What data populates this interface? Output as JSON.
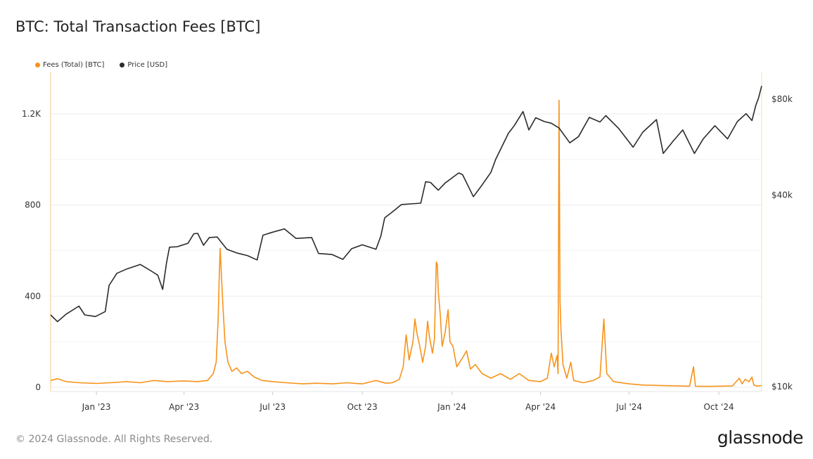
{
  "title": "BTC: Total Transaction Fees [BTC]",
  "footer": {
    "copyright": "© 2024 Glassnode. All Rights Reserved.",
    "brand": "glassnode"
  },
  "colors": {
    "fees": "#f7931a",
    "price": "#2b2b2b",
    "grid": "#ececec"
  },
  "chart_data": {
    "type": "line",
    "title": "BTC: Total Transaction Fees [BTC]",
    "legend": "top-left",
    "grid": true,
    "x_range": [
      "2022-11-15",
      "2024-11-14"
    ],
    "x_ticks": [
      {
        "date": "2023-01-01",
        "label": "Jan '23"
      },
      {
        "date": "2023-04-01",
        "label": "Apr '23"
      },
      {
        "date": "2023-07-01",
        "label": "Jul '23"
      },
      {
        "date": "2023-10-01",
        "label": "Oct '23"
      },
      {
        "date": "2024-01-01",
        "label": "Jan '24"
      },
      {
        "date": "2024-04-01",
        "label": "Apr '24"
      },
      {
        "date": "2024-07-01",
        "label": "Jul '24"
      },
      {
        "date": "2024-10-01",
        "label": "Oct '24"
      }
    ],
    "y_left": {
      "range": [
        0,
        1350
      ],
      "ticks": [
        {
          "v": 0,
          "label": "0"
        },
        {
          "v": 400,
          "label": "400"
        },
        {
          "v": 800,
          "label": "800"
        },
        {
          "v": 1200,
          "label": "1.2K"
        }
      ]
    },
    "y_right": {
      "scale": "log",
      "range": [
        10000,
        100000
      ],
      "ticks": [
        {
          "v": 10000,
          "label": "$10k"
        },
        {
          "v": 40000,
          "label": "$40k"
        },
        {
          "v": 80000,
          "label": "$80k"
        }
      ]
    },
    "series": [
      {
        "name": "Fees (Total) [BTC]",
        "axis": "left",
        "points": [
          [
            "2022-11-15",
            30
          ],
          [
            "2022-11-22",
            38
          ],
          [
            "2022-12-01",
            25
          ],
          [
            "2022-12-15",
            20
          ],
          [
            "2023-01-01",
            17
          ],
          [
            "2023-01-15",
            20
          ],
          [
            "2023-02-01",
            25
          ],
          [
            "2023-02-15",
            20
          ],
          [
            "2023-03-01",
            30
          ],
          [
            "2023-03-15",
            25
          ],
          [
            "2023-04-01",
            28
          ],
          [
            "2023-04-15",
            25
          ],
          [
            "2023-04-25",
            30
          ],
          [
            "2023-05-01",
            60
          ],
          [
            "2023-05-04",
            110
          ],
          [
            "2023-05-06",
            300
          ],
          [
            "2023-05-07",
            470
          ],
          [
            "2023-05-08",
            610
          ],
          [
            "2023-05-09",
            520
          ],
          [
            "2023-05-11",
            350
          ],
          [
            "2023-05-13",
            200
          ],
          [
            "2023-05-16",
            110
          ],
          [
            "2023-05-20",
            70
          ],
          [
            "2023-05-25",
            85
          ],
          [
            "2023-05-30",
            60
          ],
          [
            "2023-06-05",
            70
          ],
          [
            "2023-06-12",
            45
          ],
          [
            "2023-06-20",
            30
          ],
          [
            "2023-07-01",
            25
          ],
          [
            "2023-07-15",
            20
          ],
          [
            "2023-08-01",
            15
          ],
          [
            "2023-08-15",
            18
          ],
          [
            "2023-09-01",
            15
          ],
          [
            "2023-09-15",
            20
          ],
          [
            "2023-10-01",
            15
          ],
          [
            "2023-10-15",
            30
          ],
          [
            "2023-10-25",
            18
          ],
          [
            "2023-11-01",
            20
          ],
          [
            "2023-11-08",
            35
          ],
          [
            "2023-11-12",
            90
          ],
          [
            "2023-11-15",
            230
          ],
          [
            "2023-11-18",
            120
          ],
          [
            "2023-11-22",
            200
          ],
          [
            "2023-11-24",
            300
          ],
          [
            "2023-11-26",
            240
          ],
          [
            "2023-11-29",
            180
          ],
          [
            "2023-12-02",
            110
          ],
          [
            "2023-12-05",
            180
          ],
          [
            "2023-12-07",
            290
          ],
          [
            "2023-12-09",
            220
          ],
          [
            "2023-12-12",
            150
          ],
          [
            "2023-12-14",
            210
          ],
          [
            "2023-12-16",
            550
          ],
          [
            "2023-12-17",
            540
          ],
          [
            "2023-12-18",
            420
          ],
          [
            "2023-12-20",
            320
          ],
          [
            "2023-12-22",
            180
          ],
          [
            "2023-12-25",
            240
          ],
          [
            "2023-12-28",
            340
          ],
          [
            "2023-12-30",
            200
          ],
          [
            "2024-01-02",
            180
          ],
          [
            "2024-01-06",
            90
          ],
          [
            "2024-01-12",
            130
          ],
          [
            "2024-01-16",
            160
          ],
          [
            "2024-01-20",
            80
          ],
          [
            "2024-01-25",
            100
          ],
          [
            "2024-02-01",
            60
          ],
          [
            "2024-02-10",
            40
          ],
          [
            "2024-02-20",
            60
          ],
          [
            "2024-03-01",
            35
          ],
          [
            "2024-03-10",
            60
          ],
          [
            "2024-03-20",
            30
          ],
          [
            "2024-04-01",
            25
          ],
          [
            "2024-04-08",
            40
          ],
          [
            "2024-04-12",
            150
          ],
          [
            "2024-04-15",
            90
          ],
          [
            "2024-04-18",
            140
          ],
          [
            "2024-04-19",
            60
          ],
          [
            "2024-04-20",
            1260
          ],
          [
            "2024-04-21",
            380
          ],
          [
            "2024-04-22",
            250
          ],
          [
            "2024-04-24",
            100
          ],
          [
            "2024-04-28",
            40
          ],
          [
            "2024-05-02",
            110
          ],
          [
            "2024-05-05",
            30
          ],
          [
            "2024-05-15",
            20
          ],
          [
            "2024-05-25",
            30
          ],
          [
            "2024-06-01",
            45
          ],
          [
            "2024-06-05",
            300
          ],
          [
            "2024-06-08",
            60
          ],
          [
            "2024-06-15",
            25
          ],
          [
            "2024-07-01",
            15
          ],
          [
            "2024-07-15",
            10
          ],
          [
            "2024-08-01",
            8
          ],
          [
            "2024-08-20",
            6
          ],
          [
            "2024-09-01",
            5
          ],
          [
            "2024-09-05",
            90
          ],
          [
            "2024-09-07",
            5
          ],
          [
            "2024-09-20",
            4
          ],
          [
            "2024-10-01",
            5
          ],
          [
            "2024-10-15",
            6
          ],
          [
            "2024-10-22",
            40
          ],
          [
            "2024-10-25",
            15
          ],
          [
            "2024-10-28",
            35
          ],
          [
            "2024-11-01",
            25
          ],
          [
            "2024-11-04",
            45
          ],
          [
            "2024-11-06",
            10
          ],
          [
            "2024-11-10",
            5
          ],
          [
            "2024-11-14",
            8
          ]
        ]
      },
      {
        "name": "Price [USD]",
        "axis": "right",
        "points": [
          [
            "2022-11-15",
            16800
          ],
          [
            "2022-11-22",
            16000
          ],
          [
            "2022-12-01",
            16900
          ],
          [
            "2022-12-14",
            17900
          ],
          [
            "2022-12-20",
            16800
          ],
          [
            "2022-12-31",
            16600
          ],
          [
            "2023-01-10",
            17200
          ],
          [
            "2023-01-14",
            20800
          ],
          [
            "2023-01-22",
            22700
          ],
          [
            "2023-02-01",
            23400
          ],
          [
            "2023-02-15",
            24200
          ],
          [
            "2023-02-25",
            23200
          ],
          [
            "2023-03-05",
            22400
          ],
          [
            "2023-03-10",
            20200
          ],
          [
            "2023-03-14",
            24500
          ],
          [
            "2023-03-17",
            27400
          ],
          [
            "2023-03-25",
            27500
          ],
          [
            "2023-04-05",
            28200
          ],
          [
            "2023-04-11",
            30200
          ],
          [
            "2023-04-15",
            30300
          ],
          [
            "2023-04-21",
            27800
          ],
          [
            "2023-04-27",
            29400
          ],
          [
            "2023-05-05",
            29500
          ],
          [
            "2023-05-15",
            27000
          ],
          [
            "2023-05-25",
            26300
          ],
          [
            "2023-06-05",
            25800
          ],
          [
            "2023-06-15",
            25000
          ],
          [
            "2023-06-21",
            29900
          ],
          [
            "2023-06-30",
            30500
          ],
          [
            "2023-07-13",
            31300
          ],
          [
            "2023-07-25",
            29200
          ],
          [
            "2023-08-10",
            29400
          ],
          [
            "2023-08-17",
            26200
          ],
          [
            "2023-08-31",
            26000
          ],
          [
            "2023-09-11",
            25100
          ],
          [
            "2023-09-20",
            27100
          ],
          [
            "2023-10-01",
            27900
          ],
          [
            "2023-10-15",
            27000
          ],
          [
            "2023-10-20",
            29700
          ],
          [
            "2023-10-24",
            33900
          ],
          [
            "2023-11-01",
            35400
          ],
          [
            "2023-11-10",
            37300
          ],
          [
            "2023-11-20",
            37500
          ],
          [
            "2023-11-30",
            37700
          ],
          [
            "2023-12-05",
            44000
          ],
          [
            "2023-12-10",
            43800
          ],
          [
            "2023-12-18",
            41400
          ],
          [
            "2023-12-25",
            43600
          ],
          [
            "2024-01-08",
            46900
          ],
          [
            "2024-01-12",
            46300
          ],
          [
            "2024-01-23",
            39500
          ],
          [
            "2024-02-01",
            43000
          ],
          [
            "2024-02-10",
            47100
          ],
          [
            "2024-02-15",
            51800
          ],
          [
            "2024-02-28",
            62500
          ],
          [
            "2024-03-05",
            66000
          ],
          [
            "2024-03-14",
            73100
          ],
          [
            "2024-03-20",
            64000
          ],
          [
            "2024-03-27",
            69900
          ],
          [
            "2024-04-05",
            68000
          ],
          [
            "2024-04-12",
            67200
          ],
          [
            "2024-04-20",
            64900
          ],
          [
            "2024-05-01",
            58300
          ],
          [
            "2024-05-10",
            61000
          ],
          [
            "2024-05-21",
            70100
          ],
          [
            "2024-06-01",
            67800
          ],
          [
            "2024-06-07",
            71000
          ],
          [
            "2024-06-20",
            64800
          ],
          [
            "2024-07-05",
            56500
          ],
          [
            "2024-07-15",
            63000
          ],
          [
            "2024-07-29",
            69000
          ],
          [
            "2024-08-05",
            54000
          ],
          [
            "2024-08-15",
            59000
          ],
          [
            "2024-08-25",
            64000
          ],
          [
            "2024-09-06",
            54000
          ],
          [
            "2024-09-15",
            60000
          ],
          [
            "2024-09-27",
            66000
          ],
          [
            "2024-10-10",
            60000
          ],
          [
            "2024-10-20",
            68000
          ],
          [
            "2024-10-29",
            72000
          ],
          [
            "2024-11-04",
            68500
          ],
          [
            "2024-11-08",
            76500
          ],
          [
            "2024-11-11",
            81000
          ],
          [
            "2024-11-14",
            88000
          ]
        ]
      }
    ]
  }
}
